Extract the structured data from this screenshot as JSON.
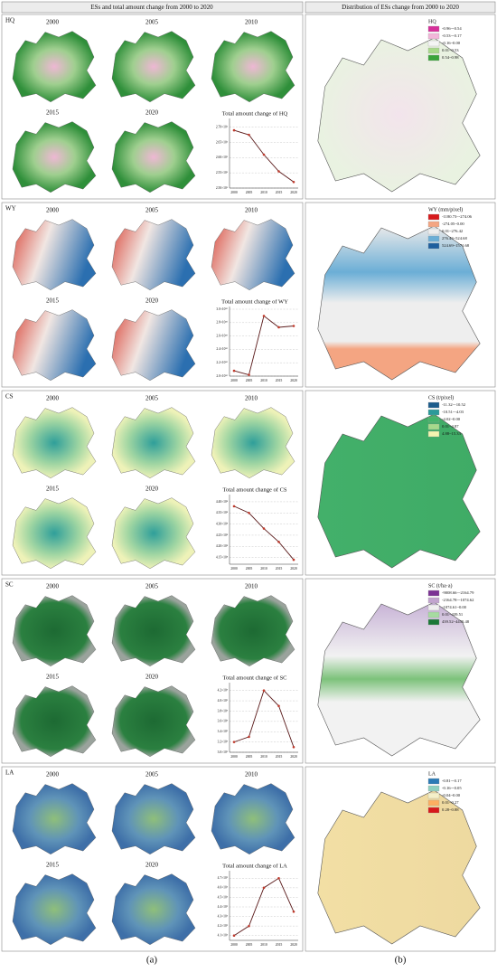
{
  "headers": {
    "left": "ESs and total amount change from 2000 to 2020",
    "right": "Distribution of ESs change from 2000 to 2020"
  },
  "panel_labels": [
    "(a)",
    "(b)"
  ],
  "rows": [
    {
      "service": "HQ",
      "years": [
        "2000",
        "2005",
        "2010",
        "2015",
        "2020"
      ],
      "chart_data": {
        "type": "line",
        "title": "Total amount change of HQ",
        "categories": [
          "2000",
          "2005",
          "2010",
          "2015",
          "2020"
        ],
        "values": [
          2690000,
          2675000,
          2610000,
          2555000,
          2520000
        ],
        "color": "#5a1a1a",
        "marker_color": "#c0392b",
        "ylim": [
          2500000,
          2720000
        ],
        "yticks": [
          {
            "value": 2500000,
            "label": "2.50×10⁶"
          },
          {
            "value": 2550000,
            "label": "2.55×10⁶"
          },
          {
            "value": 2600000,
            "label": "2.60×10⁶"
          },
          {
            "value": 2650000,
            "label": "2.65×10⁶"
          },
          {
            "value": 2700000,
            "label": "2.70×10⁶"
          }
        ],
        "grid": true
      },
      "legend": {
        "title": "HQ",
        "items": [
          {
            "label": "-0.96~-0.54",
            "color": "#d6309a"
          },
          {
            "label": "-0.53~-0.17",
            "color": "#f2b6d9"
          },
          {
            "label": "-0.16~0.00",
            "color": "#f5f5f5"
          },
          {
            "label": "0.01~0.53",
            "color": "#a8d98a"
          },
          {
            "label": "0.54~0.98",
            "color": "#3aa43a"
          }
        ]
      }
    },
    {
      "service": "WY",
      "years": [
        "2000",
        "2005",
        "2010",
        "2015",
        "2020"
      ],
      "chart_data": {
        "type": "line",
        "title": "Total amount change of WY",
        "categories": [
          "2000",
          "2005",
          "2010",
          "2015",
          "2020"
        ],
        "values": [
          20800000000,
          20200000000,
          29000000000,
          27300000000,
          27500000000
        ],
        "color": "#5a1a1a",
        "marker_color": "#c0392b",
        "ylim": [
          20000000000,
          30000000000
        ],
        "yticks": [
          {
            "value": 20000000000,
            "label": "2.0×10¹⁰"
          },
          {
            "value": 22000000000,
            "label": "2.2×10¹⁰"
          },
          {
            "value": 24000000000,
            "label": "2.4×10¹⁰"
          },
          {
            "value": 26000000000,
            "label": "2.6×10¹⁰"
          },
          {
            "value": 28000000000,
            "label": "2.8×10¹⁰"
          },
          {
            "value": 30000000000,
            "label": "3.0×10¹⁰"
          }
        ],
        "grid": true
      },
      "legend": {
        "title": "WY (mm/pixel)",
        "items": [
          {
            "label": "-1180.73~-274.06",
            "color": "#d7191c"
          },
          {
            "label": "-274.05~0.00",
            "color": "#f4a582"
          },
          {
            "label": "0.01~276.42",
            "color": "#eeeeee"
          },
          {
            "label": "276.43~524.68",
            "color": "#6baed6"
          },
          {
            "label": "524.69~1571.68",
            "color": "#1f5f9e"
          }
        ]
      }
    },
    {
      "service": "CS",
      "years": [
        "2000",
        "2005",
        "2010",
        "2015",
        "2020"
      ],
      "chart_data": {
        "type": "line",
        "title": "Total amount change of CS",
        "categories": [
          "2000",
          "2005",
          "2010",
          "2015",
          "2020"
        ],
        "values": [
          438000000,
          435000000,
          428000000,
          422000000,
          414000000
        ],
        "color": "#5a1a1a",
        "marker_color": "#c0392b",
        "ylim": [
          412000000,
          442000000
        ],
        "yticks": [
          {
            "value": 415000000,
            "label": "4.15×10⁸"
          },
          {
            "value": 420000000,
            "label": "4.20×10⁸"
          },
          {
            "value": 425000000,
            "label": "4.25×10⁸"
          },
          {
            "value": 430000000,
            "label": "4.30×10⁸"
          },
          {
            "value": 435000000,
            "label": "4.35×10⁸"
          },
          {
            "value": 440000000,
            "label": "4.40×10⁸"
          }
        ],
        "grid": true
      },
      "legend": {
        "title": "CS (t/pixel)",
        "items": [
          {
            "label": "-11.32~-10.52",
            "color": "#1c5c8c"
          },
          {
            "label": "-10.51~-4.03",
            "color": "#2b9a9a"
          },
          {
            "label": "-4.02~0.00",
            "color": "#45b46a"
          },
          {
            "label": "0.01~4.87",
            "color": "#a6d98c"
          },
          {
            "label": "4.88~15.33",
            "color": "#f4f4b0"
          }
        ]
      }
    },
    {
      "service": "SC",
      "years": [
        "2000",
        "2005",
        "2010",
        "2015",
        "2020"
      ],
      "chart_data": {
        "type": "line",
        "title": "Total amount change of SC",
        "categories": [
          "2000",
          "2005",
          "2010",
          "2015",
          "2020"
        ],
        "values": [
          3200000000,
          3300000000,
          4200000000,
          3900000000,
          3100000000
        ],
        "color": "#5a1a1a",
        "marker_color": "#c0392b",
        "ylim": [
          3000000000,
          4300000000
        ],
        "yticks": [
          {
            "value": 3000000000,
            "label": "3.0×10⁹"
          },
          {
            "value": 3200000000,
            "label": "3.2×10⁹"
          },
          {
            "value": 3400000000,
            "label": "3.4×10⁹"
          },
          {
            "value": 3600000000,
            "label": "3.6×10⁹"
          },
          {
            "value": 3800000000,
            "label": "3.8×10⁹"
          },
          {
            "value": 4000000000,
            "label": "4.0×10⁹"
          },
          {
            "value": 4200000000,
            "label": "4.2×10⁹"
          }
        ],
        "grid": true
      },
      "legend": {
        "title": "SC (t/ha·a)",
        "items": [
          {
            "label": "-9008.66~-2164.79",
            "color": "#7b3294"
          },
          {
            "label": "-2164.78~-1074.62",
            "color": "#c2a5cf"
          },
          {
            "label": "-1074.61~0.00",
            "color": "#f0f0f0"
          },
          {
            "label": "0.01~439.51",
            "color": "#a6dba0"
          },
          {
            "label": "439.52~4455.48",
            "color": "#1b7837"
          }
        ]
      }
    },
    {
      "service": "LA",
      "years": [
        "2000",
        "2005",
        "2010",
        "2015",
        "2020"
      ],
      "chart_data": {
        "type": "line",
        "title": "Total amount change of LA",
        "categories": [
          "2000",
          "2005",
          "2010",
          "2015",
          "2020"
        ],
        "values": [
          410000,
          420000,
          460000,
          470000,
          435000
        ],
        "color": "#5a1a1a",
        "marker_color": "#c0392b",
        "ylim": [
          405000,
          475000
        ],
        "yticks": [
          {
            "value": 410000,
            "label": "4.1×10⁵"
          },
          {
            "value": 420000,
            "label": "4.2×10⁵"
          },
          {
            "value": 430000,
            "label": "4.3×10⁵"
          },
          {
            "value": 440000,
            "label": "4.4×10⁵"
          },
          {
            "value": 450000,
            "label": "4.5×10⁵"
          },
          {
            "value": 460000,
            "label": "4.6×10⁵"
          },
          {
            "value": 470000,
            "label": "4.7×10⁵"
          }
        ],
        "grid": true
      },
      "legend": {
        "title": "LA",
        "items": [
          {
            "label": "-0.81~-0.17",
            "color": "#2c7bb6"
          },
          {
            "label": "-0.16~-0.05",
            "color": "#8fd1c0"
          },
          {
            "label": "-0.04~0.00",
            "color": "#f5f0c8"
          },
          {
            "label": "0.01~0.27",
            "color": "#fdae61"
          },
          {
            "label": "0.28~0.88",
            "color": "#d7191c"
          }
        ]
      }
    }
  ]
}
